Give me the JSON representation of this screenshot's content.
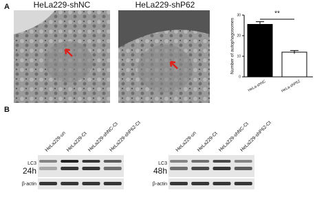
{
  "panel_labels": [
    "A",
    "B"
  ],
  "images": [
    {
      "title": "HeLa229-shNC"
    },
    {
      "title": "HeLa229-shP62"
    }
  ],
  "chart_data": {
    "type": "bar",
    "categories": [
      "HeLa-shNC",
      "HeLa-shP62"
    ],
    "values": [
      25.5,
      12
    ],
    "errors": [
      1.3,
      0.8
    ],
    "colors": [
      "#000000",
      "#ffffff"
    ],
    "y_label": "Number of autophagosomes",
    "ylim": [
      0,
      30
    ],
    "yticks": [
      0,
      10,
      20,
      30
    ],
    "significance": "**"
  },
  "blots": [
    {
      "time": "24h",
      "lanes": [
        "HeLa229-un",
        "HeLa229-Ct",
        "HeLa229-shNC-Ct",
        "HeLa229-shP62-Ct"
      ],
      "markers": [
        "LC3",
        "β-actin"
      ]
    },
    {
      "time": "48h",
      "lanes": [
        "HeLa229-un",
        "HeLa229-Ct",
        "HeLa229-shNC-Ct",
        "HeLa229-shP62-Ct"
      ],
      "markers": [
        "LC3",
        "β-actin"
      ]
    }
  ]
}
